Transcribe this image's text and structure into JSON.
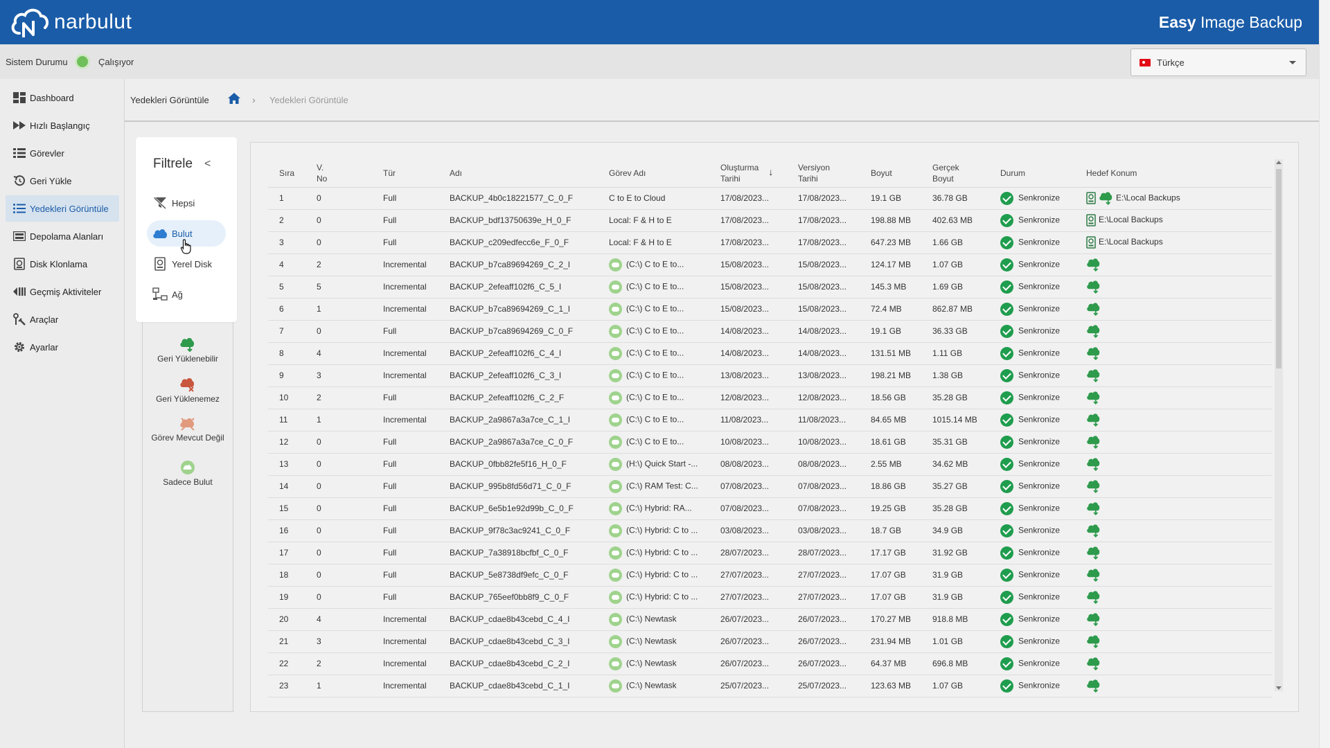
{
  "header": {
    "brand": "narbulut",
    "app_title_bold": "Easy",
    "app_title_rest": " Image Backup",
    "bar_color": "#1a5ca8"
  },
  "status": {
    "label": "Sistem Durumu",
    "state": "Çalışıyor",
    "state_color": "#6fbf5a"
  },
  "language": {
    "selected": "Türkçe"
  },
  "sidebar": {
    "items": [
      {
        "label": "Dashboard",
        "icon": "dashboard-icon"
      },
      {
        "label": "Hızlı Başlangıç",
        "icon": "fast-forward-icon"
      },
      {
        "label": "Görevler",
        "icon": "tasks-icon"
      },
      {
        "label": "Geri Yükle",
        "icon": "restore-icon"
      },
      {
        "label": "Yedekleri Görüntüle",
        "icon": "list-icon",
        "active": true
      },
      {
        "label": "Depolama Alanları",
        "icon": "storage-icon"
      },
      {
        "label": "Disk Klonlama",
        "icon": "disk-clone-icon"
      },
      {
        "label": "Geçmiş Aktiviteler",
        "icon": "history-icon"
      },
      {
        "label": "Araçlar",
        "icon": "tools-icon"
      },
      {
        "label": "Ayarlar",
        "icon": "gear-icon"
      }
    ]
  },
  "breadcrumb": {
    "title": "Yedekleri Görüntüle",
    "current": "Yedekleri Görüntüle",
    "separator": "›"
  },
  "filter": {
    "title": "Filtrele",
    "back": "<",
    "items": [
      {
        "label": "Hepsi",
        "icon": "filter-off-icon"
      },
      {
        "label": "Bulut",
        "icon": "cloud-icon",
        "active": true
      },
      {
        "label": "Yerel Disk",
        "icon": "local-disk-icon"
      },
      {
        "label": "Ağ",
        "icon": "network-icon"
      }
    ]
  },
  "legend": [
    {
      "label": "Geri Yüklenebilir",
      "icon": "cloud-restorable-icon"
    },
    {
      "label": "Geri Yüklenemez",
      "icon": "cloud-unrestorable-icon"
    },
    {
      "label": "Görev Mevcut Değil",
      "icon": "task-missing-icon"
    },
    {
      "label": "Sadece Bulut",
      "icon": "cloud-only-icon"
    }
  ],
  "table": {
    "columns": {
      "sira": "Sıra",
      "vno_1": "V.",
      "vno_2": "No",
      "tur": "Tür",
      "adi": "Adı",
      "gorev": "Görev Adı",
      "olus_1": "Oluşturma",
      "olus_2": "Tarihi",
      "sort": "↓",
      "vers_1": "Versiyon",
      "vers_2": "Tarihi",
      "boyut": "Boyut",
      "gercek_1": "Gerçek",
      "gercek_2": "Boyut",
      "durum": "Durum",
      "hedef": "Hedef Konum"
    },
    "rows": [
      {
        "sira": "1",
        "vno": "0",
        "tur": "Full",
        "adi": "BACKUP_4b0c18221577_C_0_F",
        "gorev": "C to E to Cloud",
        "gorev_icon": false,
        "olus": "17/08/2023...",
        "vers": "17/08/2023...",
        "boyut": "19.1 GB",
        "gercek": "36.78 GB",
        "durum": "Senkronize",
        "hedef": "E:\\Local Backups",
        "hedef_type": "local+cloud"
      },
      {
        "sira": "2",
        "vno": "0",
        "tur": "Full",
        "adi": "BACKUP_bdf13750639e_H_0_F",
        "gorev": "Local: F & H to E",
        "gorev_icon": false,
        "olus": "17/08/2023...",
        "vers": "17/08/2023...",
        "boyut": "198.88 MB",
        "gercek": "402.63 MB",
        "durum": "Senkronize",
        "hedef": "E:\\Local Backups",
        "hedef_type": "local"
      },
      {
        "sira": "3",
        "vno": "0",
        "tur": "Full",
        "adi": "BACKUP_c209edfecc6e_F_0_F",
        "gorev": "Local: F & H to E",
        "gorev_icon": false,
        "olus": "17/08/2023...",
        "vers": "17/08/2023...",
        "boyut": "647.23 MB",
        "gercek": "1.66 GB",
        "durum": "Senkronize",
        "hedef": "E:\\Local Backups",
        "hedef_type": "local"
      },
      {
        "sira": "4",
        "vno": "2",
        "tur": "Incremental",
        "adi": "BACKUP_b7ca89694269_C_2_I",
        "gorev": "(C:\\) C to E to...",
        "gorev_icon": true,
        "olus": "15/08/2023...",
        "vers": "15/08/2023...",
        "boyut": "124.17 MB",
        "gercek": "1.07 GB",
        "durum": "Senkronize",
        "hedef": "",
        "hedef_type": "cloud"
      },
      {
        "sira": "5",
        "vno": "5",
        "tur": "Incremental",
        "adi": "BACKUP_2efeaff102f6_C_5_I",
        "gorev": "(C:\\) C to E to...",
        "gorev_icon": true,
        "olus": "15/08/2023...",
        "vers": "15/08/2023...",
        "boyut": "145.3 MB",
        "gercek": "1.69 GB",
        "durum": "Senkronize",
        "hedef": "",
        "hedef_type": "cloud"
      },
      {
        "sira": "6",
        "vno": "1",
        "tur": "Incremental",
        "adi": "BACKUP_b7ca89694269_C_1_I",
        "gorev": "(C:\\) C to E to...",
        "gorev_icon": true,
        "olus": "15/08/2023...",
        "vers": "15/08/2023...",
        "boyut": "72.4 MB",
        "gercek": "862.87 MB",
        "durum": "Senkronize",
        "hedef": "",
        "hedef_type": "cloud"
      },
      {
        "sira": "7",
        "vno": "0",
        "tur": "Full",
        "adi": "BACKUP_b7ca89694269_C_0_F",
        "gorev": "(C:\\) C to E to...",
        "gorev_icon": true,
        "olus": "14/08/2023...",
        "vers": "14/08/2023...",
        "boyut": "19.1 GB",
        "gercek": "36.33 GB",
        "durum": "Senkronize",
        "hedef": "",
        "hedef_type": "cloud"
      },
      {
        "sira": "8",
        "vno": "4",
        "tur": "Incremental",
        "adi": "BACKUP_2efeaff102f6_C_4_I",
        "gorev": "(C:\\) C to E to...",
        "gorev_icon": true,
        "olus": "14/08/2023...",
        "vers": "14/08/2023...",
        "boyut": "131.51 MB",
        "gercek": "1.11 GB",
        "durum": "Senkronize",
        "hedef": "",
        "hedef_type": "cloud"
      },
      {
        "sira": "9",
        "vno": "3",
        "tur": "Incremental",
        "adi": "BACKUP_2efeaff102f6_C_3_I",
        "gorev": "(C:\\) C to E to...",
        "gorev_icon": true,
        "olus": "13/08/2023...",
        "vers": "13/08/2023...",
        "boyut": "198.21 MB",
        "gercek": "1.38 GB",
        "durum": "Senkronize",
        "hedef": "",
        "hedef_type": "cloud"
      },
      {
        "sira": "10",
        "vno": "2",
        "tur": "Full",
        "adi": "BACKUP_2efeaff102f6_C_2_F",
        "gorev": "(C:\\) C to E to...",
        "gorev_icon": true,
        "olus": "12/08/2023...",
        "vers": "12/08/2023...",
        "boyut": "18.56 GB",
        "gercek": "35.28 GB",
        "durum": "Senkronize",
        "hedef": "",
        "hedef_type": "cloud"
      },
      {
        "sira": "11",
        "vno": "1",
        "tur": "Incremental",
        "adi": "BACKUP_2a9867a3a7ce_C_1_I",
        "gorev": "(C:\\) C to E to...",
        "gorev_icon": true,
        "olus": "11/08/2023...",
        "vers": "11/08/2023...",
        "boyut": "84.65 MB",
        "gercek": "1015.14 MB",
        "durum": "Senkronize",
        "hedef": "",
        "hedef_type": "cloud"
      },
      {
        "sira": "12",
        "vno": "0",
        "tur": "Full",
        "adi": "BACKUP_2a9867a3a7ce_C_0_F",
        "gorev": "(C:\\) C to E to...",
        "gorev_icon": true,
        "olus": "10/08/2023...",
        "vers": "10/08/2023...",
        "boyut": "18.61 GB",
        "gercek": "35.31 GB",
        "durum": "Senkronize",
        "hedef": "",
        "hedef_type": "cloud"
      },
      {
        "sira": "13",
        "vno": "0",
        "tur": "Full",
        "adi": "BACKUP_0fbb82fe5f16_H_0_F",
        "gorev": "(H:\\) Quick Start -...",
        "gorev_icon": true,
        "olus": "08/08/2023...",
        "vers": "08/08/2023...",
        "boyut": "2.55 MB",
        "gercek": "34.62 MB",
        "durum": "Senkronize",
        "hedef": "",
        "hedef_type": "cloud"
      },
      {
        "sira": "14",
        "vno": "0",
        "tur": "Full",
        "adi": "BACKUP_995b8fd56d71_C_0_F",
        "gorev": "(C:\\) RAM Test: C...",
        "gorev_icon": true,
        "olus": "07/08/2023...",
        "vers": "07/08/2023...",
        "boyut": "18.86 GB",
        "gercek": "35.27 GB",
        "durum": "Senkronize",
        "hedef": "",
        "hedef_type": "cloud"
      },
      {
        "sira": "15",
        "vno": "0",
        "tur": "Full",
        "adi": "BACKUP_6e5b1e92d99b_C_0_F",
        "gorev": "(C:\\) Hybrid: RA...",
        "gorev_icon": true,
        "olus": "07/08/2023...",
        "vers": "07/08/2023...",
        "boyut": "19.25 GB",
        "gercek": "35.28 GB",
        "durum": "Senkronize",
        "hedef": "",
        "hedef_type": "cloud"
      },
      {
        "sira": "16",
        "vno": "0",
        "tur": "Full",
        "adi": "BACKUP_9f78c3ac9241_C_0_F",
        "gorev": "(C:\\) Hybrid: C to ...",
        "gorev_icon": true,
        "olus": "03/08/2023...",
        "vers": "03/08/2023...",
        "boyut": "18.7 GB",
        "gercek": "34.9 GB",
        "durum": "Senkronize",
        "hedef": "",
        "hedef_type": "cloud"
      },
      {
        "sira": "17",
        "vno": "0",
        "tur": "Full",
        "adi": "BACKUP_7a38918bcfbf_C_0_F",
        "gorev": "(C:\\) Hybrid: C to ...",
        "gorev_icon": true,
        "olus": "28/07/2023...",
        "vers": "28/07/2023...",
        "boyut": "17.17 GB",
        "gercek": "31.92 GB",
        "durum": "Senkronize",
        "hedef": "",
        "hedef_type": "cloud"
      },
      {
        "sira": "18",
        "vno": "0",
        "tur": "Full",
        "adi": "BACKUP_5e8738df9efc_C_0_F",
        "gorev": "(C:\\) Hybrid: C to ...",
        "gorev_icon": true,
        "olus": "27/07/2023...",
        "vers": "27/07/2023...",
        "boyut": "17.07 GB",
        "gercek": "31.9 GB",
        "durum": "Senkronize",
        "hedef": "",
        "hedef_type": "cloud"
      },
      {
        "sira": "19",
        "vno": "0",
        "tur": "Full",
        "adi": "BACKUP_765eef0bb8f9_C_0_F",
        "gorev": "(C:\\) Hybrid: C to ...",
        "gorev_icon": true,
        "olus": "27/07/2023...",
        "vers": "27/07/2023...",
        "boyut": "17.07 GB",
        "gercek": "31.9 GB",
        "durum": "Senkronize",
        "hedef": "",
        "hedef_type": "cloud"
      },
      {
        "sira": "20",
        "vno": "4",
        "tur": "Incremental",
        "adi": "BACKUP_cdae8b43cebd_C_4_I",
        "gorev": "(C:\\) Newtask",
        "gorev_icon": true,
        "olus": "26/07/2023...",
        "vers": "26/07/2023...",
        "boyut": "170.27 MB",
        "gercek": "918.8 MB",
        "durum": "Senkronize",
        "hedef": "",
        "hedef_type": "cloud"
      },
      {
        "sira": "21",
        "vno": "3",
        "tur": "Incremental",
        "adi": "BACKUP_cdae8b43cebd_C_3_I",
        "gorev": "(C:\\) Newtask",
        "gorev_icon": true,
        "olus": "26/07/2023...",
        "vers": "26/07/2023...",
        "boyut": "231.94 MB",
        "gercek": "1.01 GB",
        "durum": "Senkronize",
        "hedef": "",
        "hedef_type": "cloud"
      },
      {
        "sira": "22",
        "vno": "2",
        "tur": "Incremental",
        "adi": "BACKUP_cdae8b43cebd_C_2_I",
        "gorev": "(C:\\) Newtask",
        "gorev_icon": true,
        "olus": "26/07/2023...",
        "vers": "26/07/2023...",
        "boyut": "64.37 MB",
        "gercek": "696.8 MB",
        "durum": "Senkronize",
        "hedef": "",
        "hedef_type": "cloud"
      },
      {
        "sira": "23",
        "vno": "1",
        "tur": "Incremental",
        "adi": "BACKUP_cdae8b43cebd_C_1_I",
        "gorev": "(C:\\) Newtask",
        "gorev_icon": true,
        "olus": "25/07/2023...",
        "vers": "25/07/2023...",
        "boyut": "123.63 MB",
        "gercek": "1.07 GB",
        "durum": "Senkronize",
        "hedef": "",
        "hedef_type": "cloud"
      }
    ]
  }
}
